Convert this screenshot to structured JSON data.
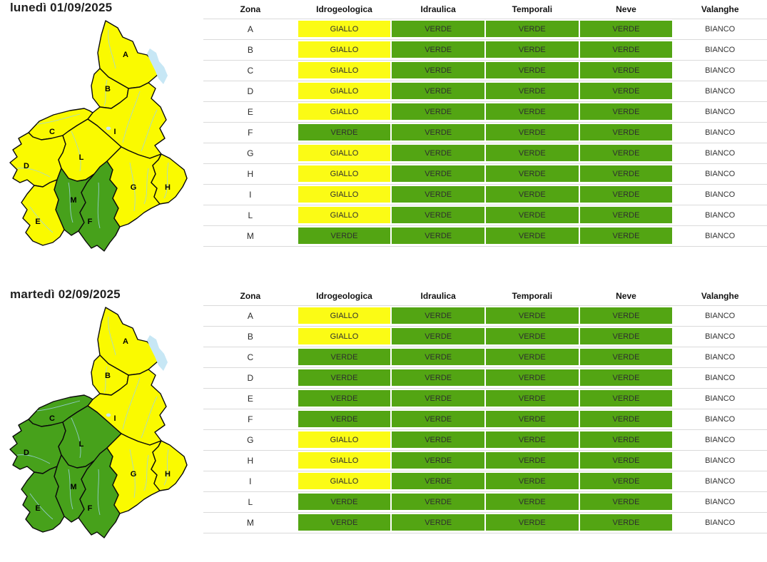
{
  "colors": {
    "giallo_cell": "#fbfb15",
    "verde_cell": "#53a513",
    "bianco_cell": "#ffffff",
    "map_giallo": "#fafa00",
    "map_verde": "#47a11b",
    "row_line": "#dadada",
    "river": "#9ed4ea",
    "lake": "#c7e7f5",
    "map_border": "#0a0a0a"
  },
  "days": [
    {
      "title": "lunedì 01/09/2025",
      "columns": [
        "Zona",
        "Idrogeologica",
        "Idraulica",
        "Temporali",
        "Neve",
        "Valanghe"
      ],
      "rows": [
        {
          "zona": "A",
          "idrogeologica": "GIALLO",
          "idraulica": "VERDE",
          "temporali": "VERDE",
          "neve": "VERDE",
          "valanghe": "BIANCO"
        },
        {
          "zona": "B",
          "idrogeologica": "GIALLO",
          "idraulica": "VERDE",
          "temporali": "VERDE",
          "neve": "VERDE",
          "valanghe": "BIANCO"
        },
        {
          "zona": "C",
          "idrogeologica": "GIALLO",
          "idraulica": "VERDE",
          "temporali": "VERDE",
          "neve": "VERDE",
          "valanghe": "BIANCO"
        },
        {
          "zona": "D",
          "idrogeologica": "GIALLO",
          "idraulica": "VERDE",
          "temporali": "VERDE",
          "neve": "VERDE",
          "valanghe": "BIANCO"
        },
        {
          "zona": "E",
          "idrogeologica": "GIALLO",
          "idraulica": "VERDE",
          "temporali": "VERDE",
          "neve": "VERDE",
          "valanghe": "BIANCO"
        },
        {
          "zona": "F",
          "idrogeologica": "VERDE",
          "idraulica": "VERDE",
          "temporali": "VERDE",
          "neve": "VERDE",
          "valanghe": "BIANCO"
        },
        {
          "zona": "G",
          "idrogeologica": "GIALLO",
          "idraulica": "VERDE",
          "temporali": "VERDE",
          "neve": "VERDE",
          "valanghe": "BIANCO"
        },
        {
          "zona": "H",
          "idrogeologica": "GIALLO",
          "idraulica": "VERDE",
          "temporali": "VERDE",
          "neve": "VERDE",
          "valanghe": "BIANCO"
        },
        {
          "zona": "I",
          "idrogeologica": "GIALLO",
          "idraulica": "VERDE",
          "temporali": "VERDE",
          "neve": "VERDE",
          "valanghe": "BIANCO"
        },
        {
          "zona": "L",
          "idrogeologica": "GIALLO",
          "idraulica": "VERDE",
          "temporali": "VERDE",
          "neve": "VERDE",
          "valanghe": "BIANCO"
        },
        {
          "zona": "M",
          "idrogeologica": "VERDE",
          "idraulica": "VERDE",
          "temporali": "VERDE",
          "neve": "VERDE",
          "valanghe": "BIANCO"
        }
      ]
    },
    {
      "title": "martedì 02/09/2025",
      "columns": [
        "Zona",
        "Idrogeologica",
        "Idraulica",
        "Temporali",
        "Neve",
        "Valanghe"
      ],
      "rows": [
        {
          "zona": "A",
          "idrogeologica": "GIALLO",
          "idraulica": "VERDE",
          "temporali": "VERDE",
          "neve": "VERDE",
          "valanghe": "BIANCO"
        },
        {
          "zona": "B",
          "idrogeologica": "GIALLO",
          "idraulica": "VERDE",
          "temporali": "VERDE",
          "neve": "VERDE",
          "valanghe": "BIANCO"
        },
        {
          "zona": "C",
          "idrogeologica": "VERDE",
          "idraulica": "VERDE",
          "temporali": "VERDE",
          "neve": "VERDE",
          "valanghe": "BIANCO"
        },
        {
          "zona": "D",
          "idrogeologica": "VERDE",
          "idraulica": "VERDE",
          "temporali": "VERDE",
          "neve": "VERDE",
          "valanghe": "BIANCO"
        },
        {
          "zona": "E",
          "idrogeologica": "VERDE",
          "idraulica": "VERDE",
          "temporali": "VERDE",
          "neve": "VERDE",
          "valanghe": "BIANCO"
        },
        {
          "zona": "F",
          "idrogeologica": "VERDE",
          "idraulica": "VERDE",
          "temporali": "VERDE",
          "neve": "VERDE",
          "valanghe": "BIANCO"
        },
        {
          "zona": "G",
          "idrogeologica": "GIALLO",
          "idraulica": "VERDE",
          "temporali": "VERDE",
          "neve": "VERDE",
          "valanghe": "BIANCO"
        },
        {
          "zona": "H",
          "idrogeologica": "GIALLO",
          "idraulica": "VERDE",
          "temporali": "VERDE",
          "neve": "VERDE",
          "valanghe": "BIANCO"
        },
        {
          "zona": "I",
          "idrogeologica": "GIALLO",
          "idraulica": "VERDE",
          "temporali": "VERDE",
          "neve": "VERDE",
          "valanghe": "BIANCO"
        },
        {
          "zona": "L",
          "idrogeologica": "VERDE",
          "idraulica": "VERDE",
          "temporali": "VERDE",
          "neve": "VERDE",
          "valanghe": "BIANCO"
        },
        {
          "zona": "M",
          "idrogeologica": "VERDE",
          "idraulica": "VERDE",
          "temporali": "VERDE",
          "neve": "VERDE",
          "valanghe": "BIANCO"
        }
      ]
    }
  ]
}
